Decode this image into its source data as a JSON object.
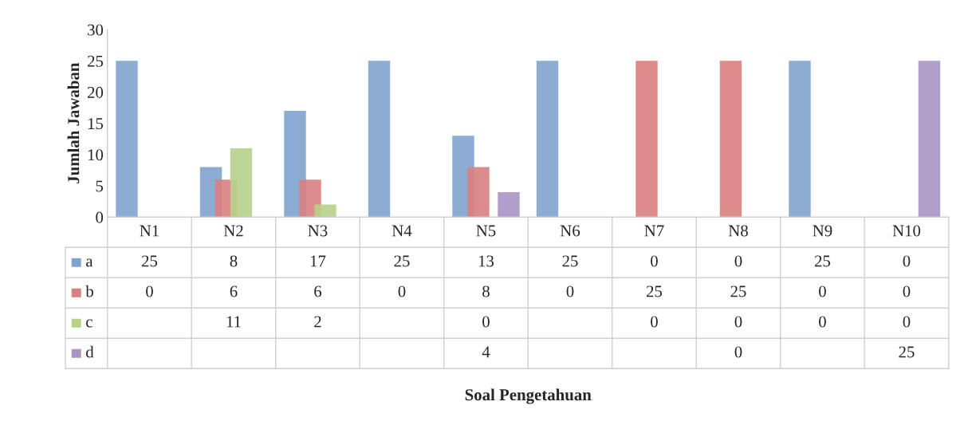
{
  "chart_data": {
    "type": "bar",
    "annotations": [
      "Soal Pengetahuan"
    ],
    "ylabel": "Jumlah Jawaban",
    "categories": [
      "N1",
      "N2",
      "N3",
      "N4",
      "N5",
      "N6",
      "N7",
      "N8",
      "N9",
      "N10"
    ],
    "series": [
      {
        "name": "a",
        "color": "#7fa3cf",
        "values": [
          25,
          8,
          17,
          25,
          13,
          25,
          0,
          0,
          25,
          0
        ]
      },
      {
        "name": "b",
        "color": "#d98080",
        "values": [
          0,
          6,
          6,
          0,
          8,
          0,
          25,
          25,
          0,
          0
        ]
      },
      {
        "name": "c",
        "color": "#b8d08a",
        "values": [
          null,
          11,
          2,
          null,
          0,
          null,
          0,
          0,
          0,
          0
        ]
      },
      {
        "name": "d",
        "color": "#a994c4",
        "values": [
          null,
          null,
          null,
          null,
          4,
          null,
          null,
          0,
          null,
          25
        ]
      }
    ],
    "ylim": [
      0,
      30
    ],
    "yticks": [
      0,
      5,
      10,
      15,
      20,
      25,
      30
    ],
    "data_labels": true,
    "legend": "bottom",
    "grid": false
  }
}
